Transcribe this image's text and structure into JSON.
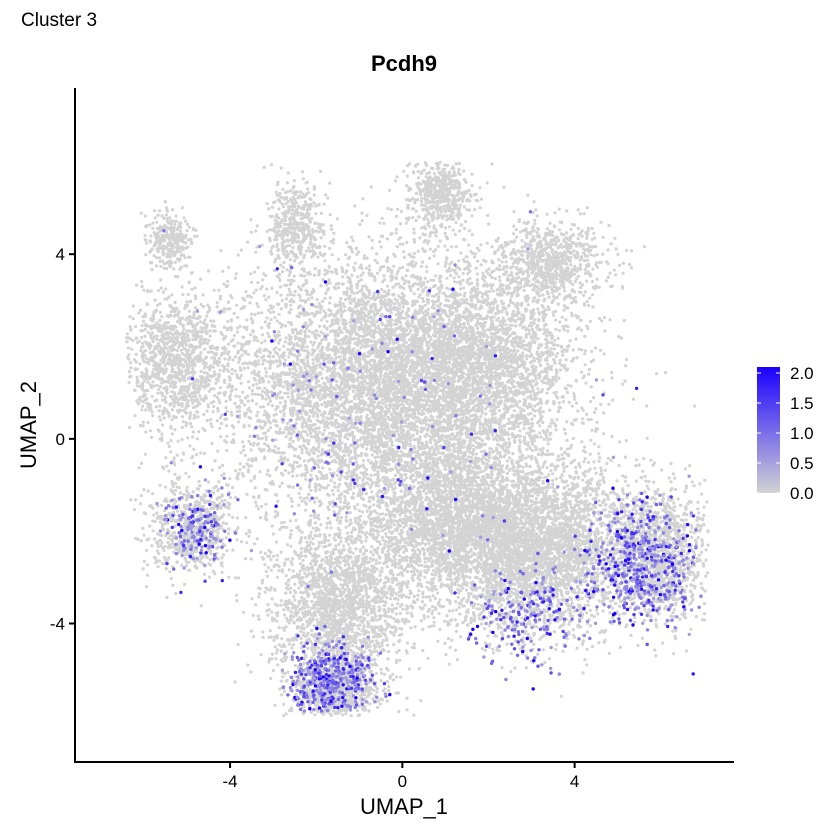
{
  "panel_label": "Cluster 3",
  "chart_data": {
    "type": "scatter",
    "title": "Pcdh9",
    "xlabel": "UMAP_1",
    "ylabel": "UMAP_2",
    "xlim": [
      -7.6,
      7.7
    ],
    "ylim": [
      -7.0,
      7.6
    ],
    "xticks": [
      -4,
      0,
      4
    ],
    "yticks": [
      -4,
      0,
      4
    ],
    "xtick_labels": [
      "-4",
      "0",
      "4"
    ],
    "ytick_labels": [
      "-4",
      "0",
      "4"
    ],
    "grid": false,
    "colors": {
      "low": "#d3d3d3",
      "high": "#1a00ff"
    },
    "legend": {
      "type": "colorbar",
      "placement": "right",
      "ticks": [
        0.0,
        0.5,
        1.0,
        1.5,
        2.0
      ],
      "tick_labels": [
        "0.0",
        "0.5",
        "1.0",
        "1.5",
        "2.0"
      ],
      "range": [
        0.0,
        2.1
      ]
    },
    "point_cloud": {
      "n_points": 22000,
      "n_expressing": 1400,
      "expression_max": 2.1,
      "blobs": [
        {
          "cx": -0.5,
          "cy": 1.2,
          "sx": 2.6,
          "sy": 2.0,
          "w": 0.3
        },
        {
          "cx": 3.2,
          "cy": -2.4,
          "sx": 1.7,
          "sy": 1.3,
          "w": 0.16
        },
        {
          "cx": -1.5,
          "cy": -3.5,
          "sx": 1.1,
          "sy": 1.2,
          "w": 0.09
        },
        {
          "cx": -1.6,
          "cy": -5.4,
          "sx": 0.7,
          "sy": 0.5,
          "w": 0.04
        },
        {
          "cx": -5.3,
          "cy": 1.7,
          "sx": 0.9,
          "sy": 1.0,
          "w": 0.05
        },
        {
          "cx": -4.9,
          "cy": -1.9,
          "sx": 0.7,
          "sy": 0.7,
          "w": 0.03
        },
        {
          "cx": 3.4,
          "cy": 3.8,
          "sx": 0.9,
          "sy": 0.6,
          "w": 0.035
        },
        {
          "cx": 0.9,
          "cy": 5.3,
          "sx": 0.5,
          "sy": 0.5,
          "w": 0.025
        },
        {
          "cx": -2.5,
          "cy": 4.6,
          "sx": 0.45,
          "sy": 0.6,
          "w": 0.02
        },
        {
          "cx": -5.4,
          "cy": 4.3,
          "sx": 0.35,
          "sy": 0.4,
          "w": 0.012
        },
        {
          "cx": 6.0,
          "cy": -2.5,
          "sx": 0.8,
          "sy": 1.0,
          "w": 0.05
        },
        {
          "cx": 1.3,
          "cy": -1.8,
          "sx": 1.5,
          "sy": 1.2,
          "w": 0.12
        },
        {
          "cx": 1.8,
          "cy": 1.6,
          "sx": 1.6,
          "sy": 1.4,
          "w": 0.1
        }
      ],
      "expression_hotspots": [
        {
          "cx": -1.7,
          "cy": -5.3,
          "sx": 0.8,
          "sy": 0.7,
          "w": 0.3
        },
        {
          "cx": 5.6,
          "cy": -2.7,
          "sx": 1.1,
          "sy": 1.1,
          "w": 0.35
        },
        {
          "cx": -4.8,
          "cy": -1.9,
          "sx": 0.7,
          "sy": 0.7,
          "w": 0.1
        },
        {
          "cx": 3.0,
          "cy": -3.8,
          "sx": 1.2,
          "sy": 0.9,
          "w": 0.15
        },
        {
          "cx": -0.5,
          "cy": 0.5,
          "sx": 3.5,
          "sy": 3.0,
          "w": 0.1
        }
      ]
    }
  }
}
